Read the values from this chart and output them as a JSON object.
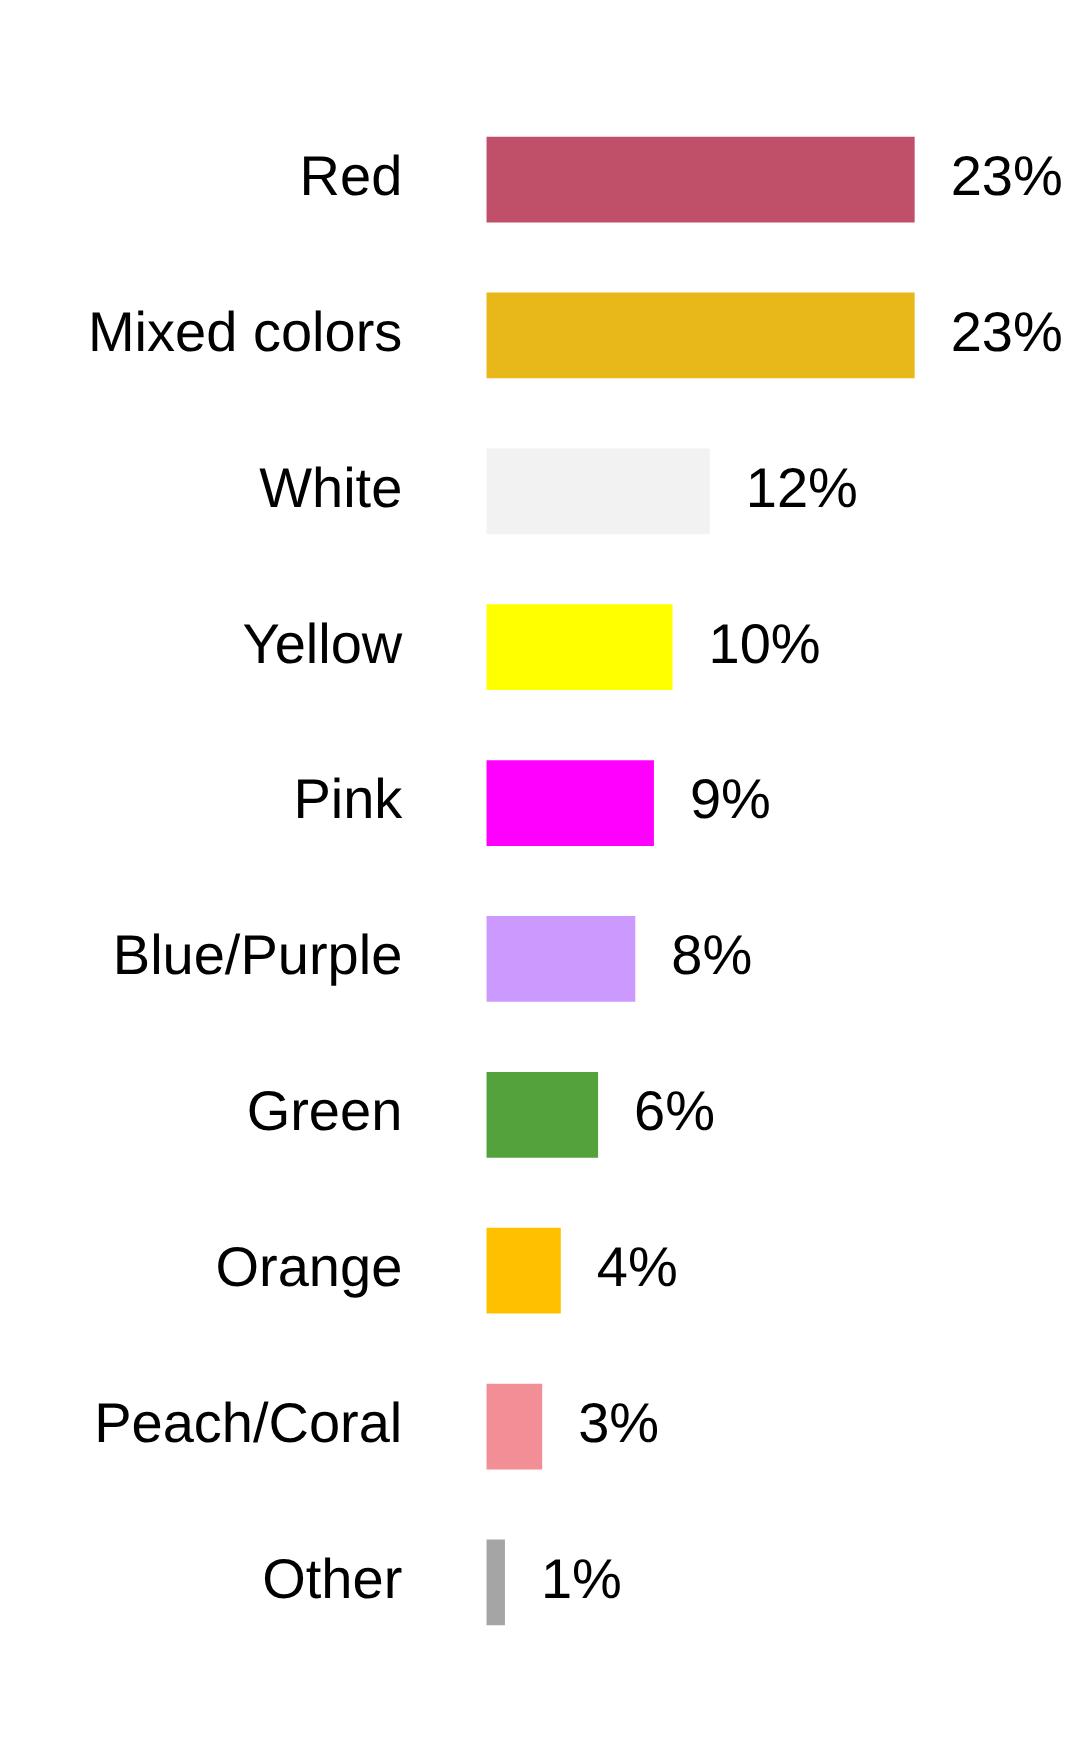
{
  "chart_data": {
    "type": "bar",
    "orientation": "horizontal",
    "categories": [
      "Red",
      "Mixed colors",
      "White",
      "Yellow",
      "Pink",
      "Blue/Purple",
      "Green",
      "Orange",
      "Peach/Coral",
      "Other"
    ],
    "values": [
      23,
      23,
      12,
      10,
      9,
      8,
      6,
      4,
      3,
      1
    ],
    "value_labels": [
      "23%",
      "23%",
      "12%",
      "10%",
      "9%",
      "8%",
      "6%",
      "4%",
      "3%",
      "1%"
    ],
    "colors": [
      "#c0506a",
      "#e8b81a",
      "#f2f2f2",
      "#ffff00",
      "#ff00ff",
      "#cc99ff",
      "#53a23c",
      "#ffc000",
      "#f28e96",
      "#a5a5a5"
    ]
  }
}
